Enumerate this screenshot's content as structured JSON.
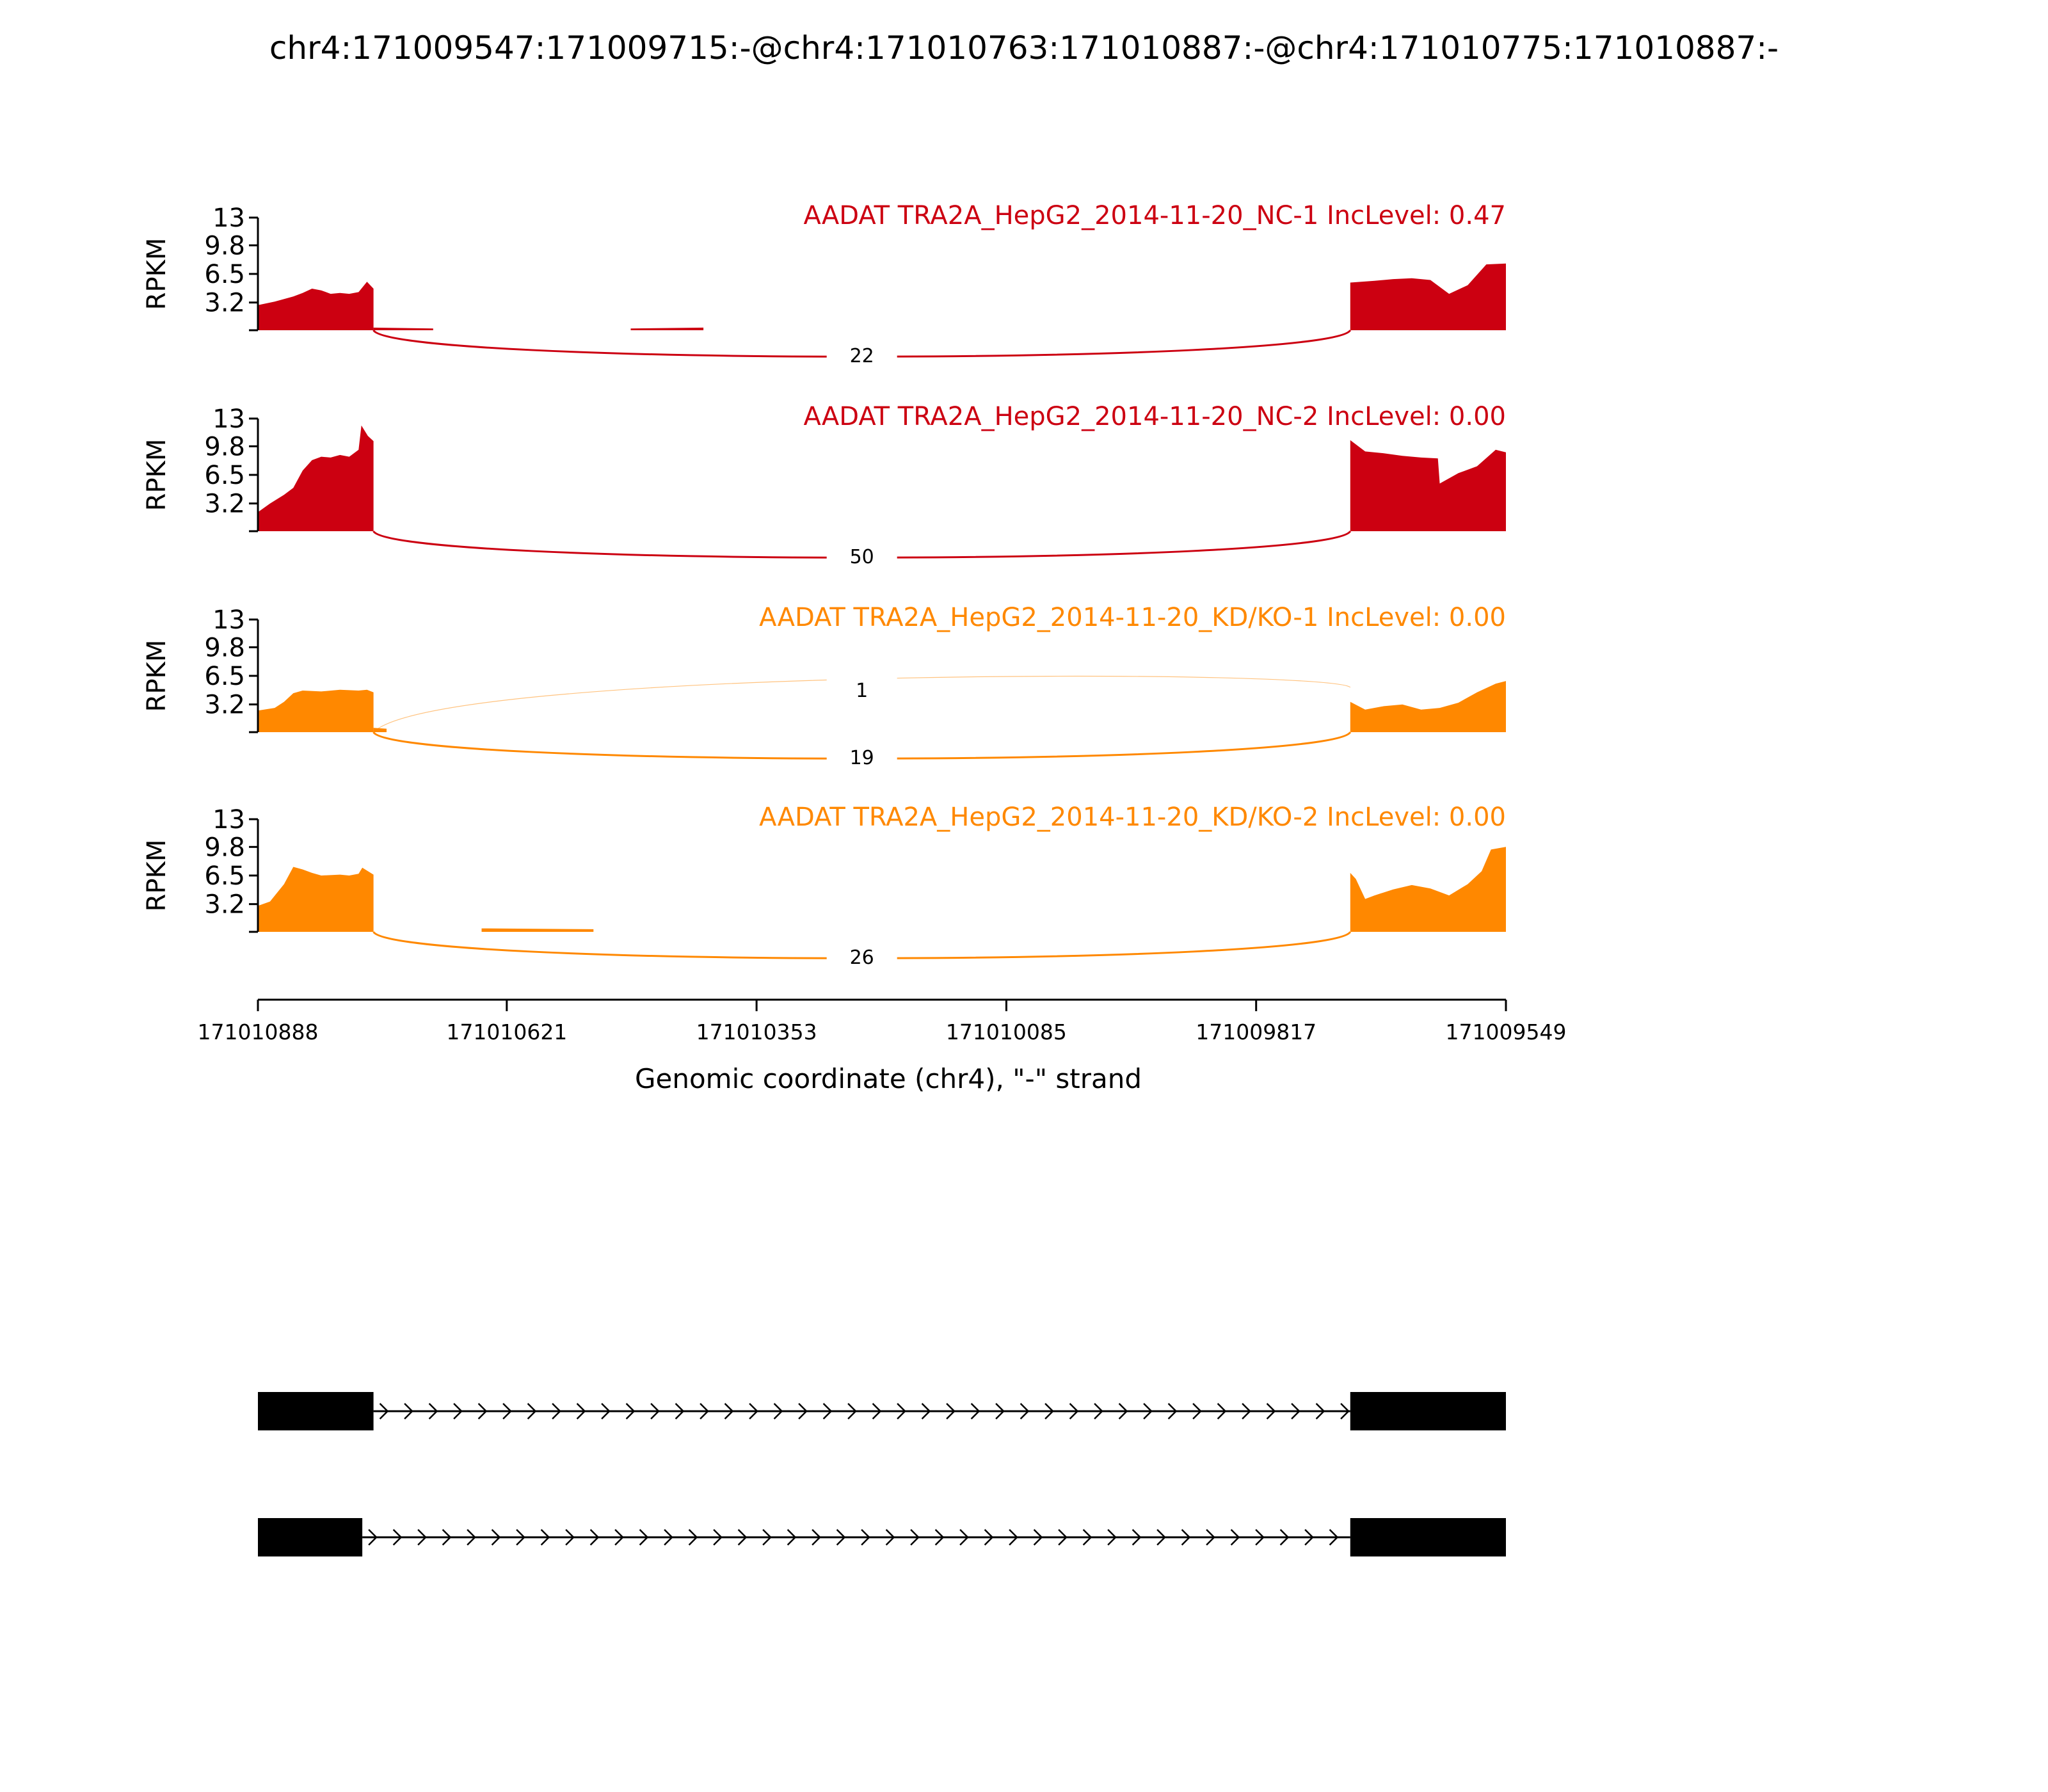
{
  "chart_data": {
    "type": "area",
    "title": "chr4:171009547:171009715:-@chr4:171010763:171010887:-@chr4:171010775:171010887:-",
    "xlabel": "Genomic coordinate (chr4), \"-\" strand",
    "ylabel": "RPKM",
    "x_range": [
      171010888,
      171009549
    ],
    "x_ticks": [
      "171010888",
      "171010621",
      "171010353",
      "171010085",
      "171009817",
      "171009549"
    ],
    "y_range": [
      0,
      13
    ],
    "y_ticks": [
      "13",
      "9.8",
      "6.5",
      "3.2"
    ],
    "exons": {
      "left": [
        171010888,
        171010776
      ],
      "left_short": [
        171010888,
        171010764
      ],
      "right": [
        171009716,
        171009549
      ]
    },
    "panels": [
      {
        "label": "AADAT TRA2A_HepG2_2014-11-20_NC-1 IncLevel: 0.47",
        "color": "#cc0011",
        "coverage": [
          {
            "x": [
              171010888,
              171010870,
              171010860,
              171010850,
              171010840,
              171010830,
              171010820,
              171010810,
              171010800,
              171010790,
              171010780,
              171010771,
              171010764
            ],
            "y": [
              2.9,
              3.3,
              3.6,
              3.9,
              4.3,
              4.8,
              4.6,
              4.2,
              4.3,
              4.2,
              4.4,
              5.6,
              4.8
            ]
          },
          {
            "x": [
              171010764,
              171010700
            ],
            "y": [
              0.3,
              0.2
            ]
          },
          {
            "x": [
              171010488,
              171010410
            ],
            "y": [
              0.2,
              0.3
            ]
          },
          {
            "x": [
              171009716,
              171009690,
              171009670,
              171009650,
              171009630,
              171009610,
              171009590,
              171009570,
              171009549
            ],
            "y": [
              5.5,
              5.7,
              5.9,
              6.0,
              5.8,
              4.2,
              5.2,
              7.6,
              7.7
            ]
          }
        ],
        "junctions": [
          {
            "count": "22",
            "from": 171010764,
            "to": 171009716,
            "side": "below"
          }
        ]
      },
      {
        "label": "AADAT TRA2A_HepG2_2014-11-20_NC-2 IncLevel: 0.00",
        "color": "#cc0011",
        "coverage": [
          {
            "x": [
              171010888,
              171010875,
              171010860,
              171010850,
              171010840,
              171010830,
              171010820,
              171010810,
              171010800,
              171010790,
              171010780,
              171010777,
              171010770,
              171010764
            ],
            "y": [
              2.2,
              3.2,
              4.2,
              5.0,
              7.0,
              8.2,
              8.6,
              8.5,
              8.8,
              8.6,
              9.4,
              12.2,
              11.0,
              10.4
            ]
          },
          {
            "x": [
              171009716,
              171009700,
              171009680,
              171009660,
              171009640,
              171009622,
              171009620,
              171009600,
              171009580,
              171009560,
              171009549
            ],
            "y": [
              10.5,
              9.2,
              9.0,
              8.7,
              8.5,
              8.4,
              5.5,
              6.7,
              7.5,
              9.4,
              9.1
            ]
          }
        ],
        "junctions": [
          {
            "count": "50",
            "from": 171010764,
            "to": 171009716,
            "side": "below"
          }
        ]
      },
      {
        "label": "AADAT TRA2A_HepG2_2014-11-20_KD/KO-1 IncLevel: 0.00",
        "color": "#ff8800",
        "coverage": [
          {
            "x": [
              171010888,
              171010870,
              171010860,
              171010850,
              171010840,
              171010820,
              171010800,
              171010780,
              171010771,
              171010764
            ],
            "y": [
              2.5,
              2.8,
              3.5,
              4.5,
              4.8,
              4.7,
              4.9,
              4.8,
              4.9,
              4.6
            ]
          },
          {
            "x": [
              171010764,
              171010750
            ],
            "y": [
              0.5,
              0.4
            ]
          },
          {
            "x": [
              171009716,
              171009700,
              171009680,
              171009660,
              171009640,
              171009620,
              171009600,
              171009580,
              171009560,
              171009549
            ],
            "y": [
              3.5,
              2.6,
              3.0,
              3.2,
              2.6,
              2.8,
              3.4,
              4.6,
              5.6,
              5.9
            ]
          }
        ],
        "junctions": [
          {
            "count": "1",
            "from": 171010764,
            "to": 171009716,
            "side": "above"
          },
          {
            "count": "19",
            "from": 171010764,
            "to": 171009716,
            "side": "below"
          }
        ]
      },
      {
        "label": "AADAT TRA2A_HepG2_2014-11-20_KD/KO-2 IncLevel: 0.00",
        "color": "#ff8800",
        "coverage": [
          {
            "x": [
              171010888,
              171010875,
              171010860,
              171010850,
              171010840,
              171010830,
              171010820,
              171010800,
              171010790,
              171010780,
              171010776,
              171010764
            ],
            "y": [
              3.0,
              3.5,
              5.5,
              7.5,
              7.2,
              6.8,
              6.5,
              6.6,
              6.5,
              6.7,
              7.4,
              6.6
            ]
          },
          {
            "x": [
              171010648,
              171010528
            ],
            "y": [
              0.4,
              0.3
            ]
          },
          {
            "x": [
              171009716,
              171009710,
              171009700,
              171009690,
              171009670,
              171009650,
              171009630,
              171009610,
              171009590,
              171009575,
              171009565,
              171009549
            ],
            "y": [
              6.8,
              6.1,
              3.8,
              4.2,
              4.9,
              5.4,
              5.0,
              4.2,
              5.5,
              7.0,
              9.5,
              9.8
            ]
          }
        ],
        "junctions": [
          {
            "count": "26",
            "from": 171010764,
            "to": 171009716,
            "side": "below"
          }
        ]
      }
    ],
    "isoforms": [
      {
        "exons": [
          [
            171010888,
            171010764
          ],
          [
            171009716,
            171009549
          ]
        ]
      },
      {
        "exons": [
          [
            171010888,
            171010776
          ],
          [
            171009716,
            171009549
          ]
        ]
      }
    ]
  }
}
